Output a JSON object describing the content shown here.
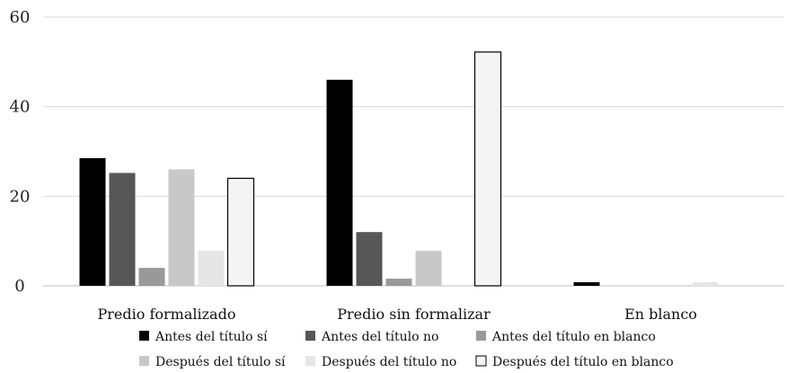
{
  "chart_data": {
    "type": "bar",
    "title": "",
    "xlabel": "",
    "ylabel": "",
    "ylim": [
      0,
      60
    ],
    "yticks": [
      0,
      20,
      40,
      60
    ],
    "grid": true,
    "legend_position": "bottom",
    "categories": [
      "Predio formalizado",
      "Predio sin formalizar",
      "En blanco"
    ],
    "series": [
      {
        "name": "Antes del título sí",
        "color": "#000000",
        "values": [
          28.5,
          46,
          0.8
        ]
      },
      {
        "name": "Antes del título no",
        "color": "#575757",
        "values": [
          25.2,
          12,
          0
        ]
      },
      {
        "name": "Antes del título en blanco",
        "color": "#999999",
        "values": [
          4,
          1.6,
          0
        ]
      },
      {
        "name": "Después del título sí",
        "color": "#c8c8c8",
        "values": [
          26,
          7.8,
          0
        ]
      },
      {
        "name": "Después del título no",
        "color": "#e6e6e6",
        "values": [
          7.8,
          0,
          0.8
        ]
      },
      {
        "name": "Después del título en blanco",
        "color": "#f4f4f4",
        "outline": "#000000",
        "values": [
          24,
          52.2,
          0
        ]
      }
    ]
  }
}
